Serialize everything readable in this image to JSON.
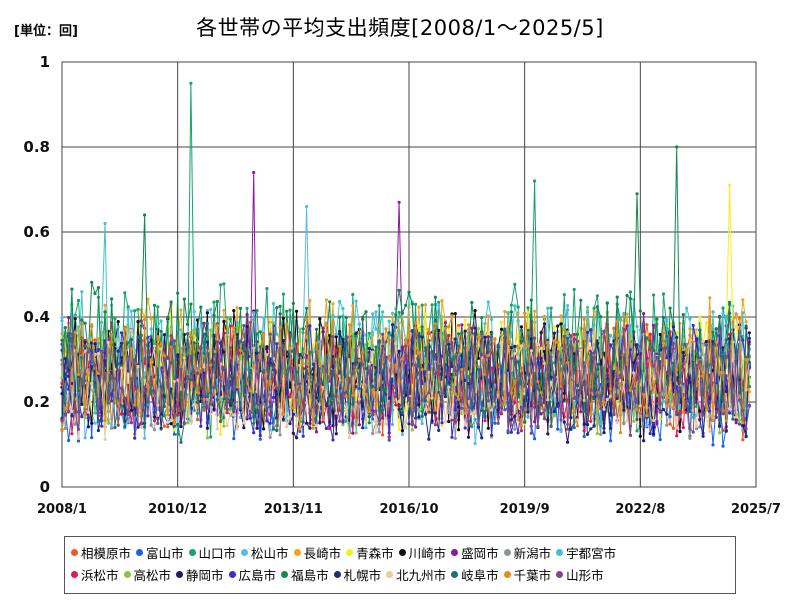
{
  "unit_label": "[単位：回]",
  "chart_data": {
    "type": "line",
    "title": "各世帯の平均支出頻度[2008/1～2025/5]",
    "x_range": [
      "2008/1",
      "2025/7"
    ],
    "x_ticks": [
      "2008/1",
      "2010/12",
      "2013/11",
      "2016/10",
      "2019/9",
      "2022/8",
      "2025/7"
    ],
    "ylim": [
      0,
      1
    ],
    "y_ticks": [
      "0",
      "0.2",
      "0.4",
      "0.6",
      "0.8",
      "1"
    ],
    "grid": true,
    "legend_position": "bottom",
    "series": [
      {
        "name": "相模原市",
        "color": "#ed5a24",
        "base": 0.25,
        "spread": 0.12
      },
      {
        "name": "富山市",
        "color": "#1763e6",
        "base": 0.22,
        "spread": 0.1
      },
      {
        "name": "山口市",
        "color": "#16a36a",
        "base": 0.3,
        "spread": 0.16
      },
      {
        "name": "松山市",
        "color": "#5db8ea",
        "base": 0.27,
        "spread": 0.14
      },
      {
        "name": "長崎市",
        "color": "#f3a21a",
        "base": 0.3,
        "spread": 0.13
      },
      {
        "name": "青森市",
        "color": "#f4f01a",
        "base": 0.27,
        "spread": 0.12
      },
      {
        "name": "川崎市",
        "color": "#111111",
        "base": 0.27,
        "spread": 0.13
      },
      {
        "name": "盛岡市",
        "color": "#8a1a9a",
        "base": 0.27,
        "spread": 0.13
      },
      {
        "name": "新潟市",
        "color": "#8c959a",
        "base": 0.23,
        "spread": 0.1
      },
      {
        "name": "宇都宮市",
        "color": "#3cc4cc",
        "base": 0.3,
        "spread": 0.14
      },
      {
        "name": "浜松市",
        "color": "#e01b4c",
        "base": 0.25,
        "spread": 0.11
      },
      {
        "name": "高松市",
        "color": "#8bc34a",
        "base": 0.26,
        "spread": 0.12
      },
      {
        "name": "静岡市",
        "color": "#281466",
        "base": 0.25,
        "spread": 0.12
      },
      {
        "name": "広島市",
        "color": "#3d2ad6",
        "base": 0.25,
        "spread": 0.12
      },
      {
        "name": "福島市",
        "color": "#0f8a4e",
        "base": 0.31,
        "spread": 0.15
      },
      {
        "name": "札幌市",
        "color": "#1a2d80",
        "base": 0.25,
        "spread": 0.12
      },
      {
        "name": "北九州市",
        "color": "#eec9a0",
        "base": 0.24,
        "spread": 0.11
      },
      {
        "name": "岐阜市",
        "color": "#1d6e7a",
        "base": 0.25,
        "spread": 0.12
      },
      {
        "name": "千葉市",
        "color": "#e8891a",
        "base": 0.27,
        "spread": 0.12
      },
      {
        "name": "山形市",
        "color": "#7d4a86",
        "base": 0.25,
        "spread": 0.11
      }
    ],
    "peaks": [
      {
        "series": "山口市",
        "x": "2011/4",
        "y": 0.95
      },
      {
        "series": "福島市",
        "x": "2023/7",
        "y": 0.8
      },
      {
        "series": "盛岡市",
        "x": "2012/11",
        "y": 0.74
      },
      {
        "series": "山口市",
        "x": "2019/12",
        "y": 0.72
      },
      {
        "series": "青森市",
        "x": "2024/11",
        "y": 0.71
      },
      {
        "series": "福島市",
        "x": "2022/7",
        "y": 0.69
      },
      {
        "series": "盛岡市",
        "x": "2016/7",
        "y": 0.67
      },
      {
        "series": "松山市",
        "x": "2014/3",
        "y": 0.66
      },
      {
        "series": "福島市",
        "x": "2010/2",
        "y": 0.64
      },
      {
        "series": "宇都宮市",
        "x": "2009/2",
        "y": 0.62
      }
    ]
  }
}
